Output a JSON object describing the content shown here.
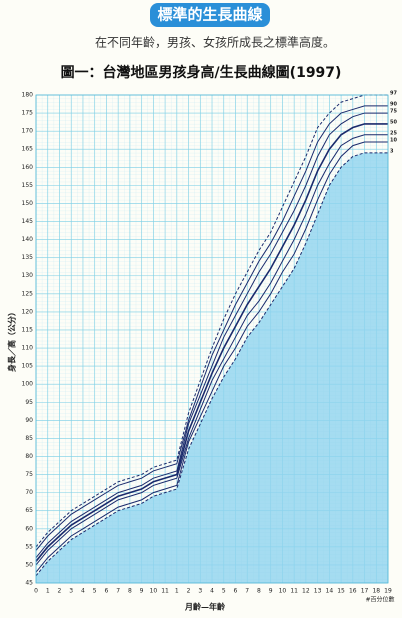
{
  "banner": "標準的生長曲線",
  "subtitle": "在不同年齡，男孩、女孩所成長之標準高度。",
  "chart_data": {
    "type": "line",
    "title": "圖一：台灣地區男孩身高/生長曲線圖(1997)",
    "x_label": "月齡—年齡",
    "y_label": "身長／高（公分）",
    "note": "#百分位數",
    "categories": [
      "0",
      "1",
      "2",
      "3",
      "4",
      "5",
      "6",
      "7",
      "8",
      "9",
      "10",
      "11",
      "1",
      "2",
      "3",
      "4",
      "5",
      "6",
      "7",
      "8",
      "9",
      "10",
      "11",
      "12",
      "13",
      "14",
      "15",
      "16",
      "17",
      "18",
      "19"
    ],
    "ylim": [
      45,
      180
    ],
    "yticks": [
      45,
      50,
      55,
      60,
      65,
      70,
      75,
      80,
      85,
      90,
      95,
      100,
      105,
      110,
      115,
      120,
      125,
      130,
      135,
      140,
      145,
      150,
      155,
      160,
      165,
      170,
      175,
      180
    ],
    "grid": true,
    "fill_below_lowest": "#8fd3ef",
    "series": [
      {
        "name": "97",
        "color": "#1a2a6c",
        "dashed": true,
        "values": [
          55,
          59,
          62,
          65,
          67,
          69,
          71,
          73,
          74,
          75,
          77,
          78,
          79,
          92,
          101,
          110,
          118,
          125,
          131,
          137,
          142,
          149,
          156,
          163,
          171,
          175,
          178,
          179,
          180,
          180,
          180
        ]
      },
      {
        "name": "90",
        "color": "#1a2a6c",
        "dashed": false,
        "values": [
          54,
          58,
          61,
          64,
          66,
          68,
          70,
          72,
          73,
          74,
          76,
          77,
          78,
          90,
          99,
          108,
          115,
          122,
          128,
          134,
          139,
          145,
          152,
          159,
          167,
          172,
          175,
          176,
          177,
          177,
          177
        ]
      },
      {
        "name": "75",
        "color": "#1a2a6c",
        "dashed": false,
        "values": [
          52,
          56,
          59,
          62,
          64,
          66,
          68,
          70,
          71,
          72,
          74,
          75,
          76,
          89,
          97,
          105,
          113,
          119,
          125,
          131,
          136,
          142,
          148,
          155,
          163,
          169,
          172,
          174,
          175,
          175,
          175
        ]
      },
      {
        "name": "50",
        "color": "#1a2a6c",
        "dashed": false,
        "values": [
          51,
          55,
          58,
          61,
          63,
          65,
          67,
          69,
          70,
          71,
          73,
          74,
          75,
          87,
          95,
          103,
          110,
          116,
          122,
          127,
          132,
          138,
          144,
          151,
          159,
          165,
          169,
          171,
          172,
          172,
          172
        ]
      },
      {
        "name": "25",
        "color": "#1a2a6c",
        "dashed": false,
        "values": [
          50,
          54,
          57,
          60,
          62,
          64,
          66,
          68,
          69,
          70,
          72,
          73,
          74,
          85,
          93,
          101,
          107,
          113,
          119,
          123,
          128,
          134,
          140,
          147,
          155,
          161,
          166,
          168,
          169,
          169,
          169
        ]
      },
      {
        "name": "10",
        "color": "#1a2a6c",
        "dashed": false,
        "values": [
          48,
          52,
          55,
          58,
          60,
          62,
          64,
          66,
          67,
          68,
          70,
          71,
          72,
          84,
          91,
          98,
          105,
          110,
          116,
          120,
          125,
          131,
          136,
          143,
          151,
          158,
          163,
          166,
          167,
          167,
          167
        ]
      },
      {
        "name": "3",
        "color": "#1a2a6c",
        "dashed": true,
        "values": [
          47,
          51,
          54,
          57,
          59,
          61,
          63,
          65,
          66,
          67,
          69,
          70,
          71,
          82,
          89,
          96,
          102,
          107,
          113,
          117,
          122,
          127,
          132,
          139,
          147,
          155,
          160,
          163,
          164,
          164,
          164
        ]
      }
    ]
  }
}
